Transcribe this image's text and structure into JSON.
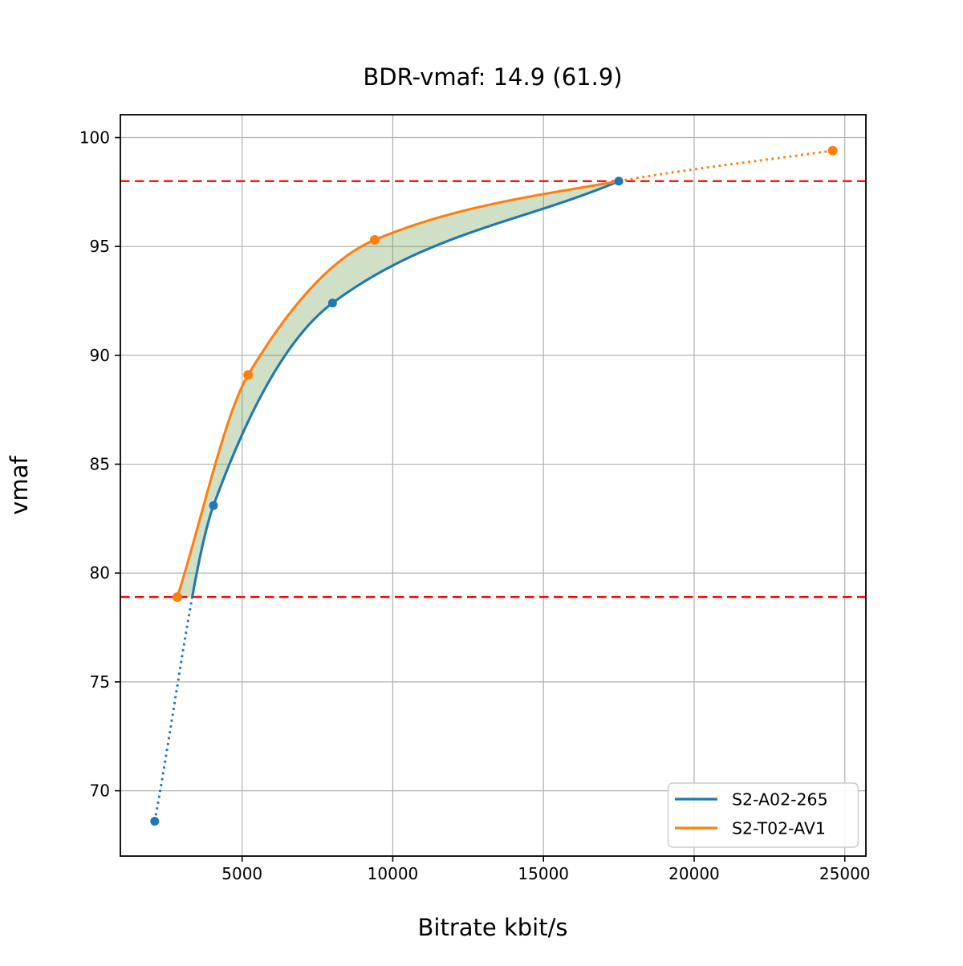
{
  "chart_data": {
    "type": "line",
    "title": "BDR-vmaf: 14.9 (61.9)",
    "xlabel": "Bitrate kbit/s",
    "ylabel": "vmaf",
    "xlim": [
      960,
      25700
    ],
    "ylim": [
      67.0,
      101.05
    ],
    "xticks": [
      5000,
      10000,
      15000,
      20000,
      25000
    ],
    "xtick_labels": [
      "5000",
      "10000",
      "15000",
      "20000",
      "25000"
    ],
    "yticks": [
      70,
      75,
      80,
      85,
      90,
      95,
      100
    ],
    "ytick_labels": [
      "70",
      "75",
      "80",
      "85",
      "90",
      "95",
      "100"
    ],
    "grid": true,
    "legend_position": "lower right",
    "series": [
      {
        "name": "S2-A02-265",
        "color": "#1f77b4",
        "points": [
          [
            2100,
            68.6
          ],
          [
            4050,
            83.1
          ],
          [
            8000,
            92.4
          ],
          [
            17500,
            98.0
          ]
        ],
        "style": "solid curve within integration range, dotted below lower bound",
        "solid_from_vmaf": 78.9
      },
      {
        "name": "S2-T02-AV1",
        "color": "#ff7f0e",
        "points": [
          [
            2850,
            78.9
          ],
          [
            5200,
            89.1
          ],
          [
            9400,
            95.3
          ],
          [
            24600,
            99.4
          ]
        ],
        "style": "solid curve up to convergence point, dotted beyond",
        "convergence_point": [
          17500,
          98.0
        ],
        "solid_to_bitrate": 17500
      }
    ],
    "hlines": [
      {
        "y": 98.0,
        "color": "#ff0000",
        "style": "dashed",
        "meaning": "upper integration bound"
      },
      {
        "y": 78.9,
        "color": "#ff0000",
        "style": "dashed",
        "meaning": "lower integration bound"
      }
    ],
    "fill_between": {
      "color": "#5f9841",
      "alpha": 0.3,
      "from_vmaf": 78.9,
      "to_vmaf": 98.0,
      "meaning": "BD area between the two curves"
    }
  },
  "colors": {
    "grid": "#b0b0b0",
    "spine": "#000000",
    "legend_border": "#cccccc",
    "background": "#ffffff",
    "blue_series": "#1f77b4",
    "orange_series": "#ff7f0e",
    "red_line": "#ff0000"
  }
}
